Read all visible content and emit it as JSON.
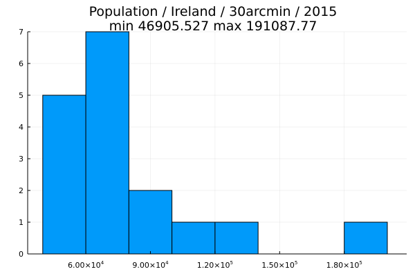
{
  "chart_data": {
    "type": "bar",
    "title": "Population / Ireland / 30arcmin / 2015",
    "subtitle": "min 46905.527  max 191087.77",
    "xlabel": "",
    "ylabel": "",
    "bins": [
      {
        "x0": 40000,
        "x1": 60000,
        "count": 5
      },
      {
        "x0": 60000,
        "x1": 80000,
        "count": 7
      },
      {
        "x0": 80000,
        "x1": 100000,
        "count": 2
      },
      {
        "x0": 100000,
        "x1": 120000,
        "count": 1
      },
      {
        "x0": 120000,
        "x1": 140000,
        "count": 1
      },
      {
        "x0": 140000,
        "x1": 160000,
        "count": 0
      },
      {
        "x0": 160000,
        "x1": 180000,
        "count": 0
      },
      {
        "x0": 180000,
        "x1": 200000,
        "count": 1
      }
    ],
    "xlim": [
      33000,
      209000
    ],
    "ylim": [
      0,
      7
    ],
    "x_ticks": [
      {
        "value": 60000,
        "mantissa": "6.00×10",
        "exponent": "4"
      },
      {
        "value": 90000,
        "mantissa": "9.00×10",
        "exponent": "4"
      },
      {
        "value": 120000,
        "mantissa": "1.20×10",
        "exponent": "5"
      },
      {
        "value": 150000,
        "mantissa": "1.50×10",
        "exponent": "5"
      },
      {
        "value": 180000,
        "mantissa": "1.80×10",
        "exponent": "5"
      }
    ],
    "y_ticks": [
      0,
      1,
      2,
      3,
      4,
      5,
      6,
      7
    ],
    "grid": true,
    "legend": false,
    "colors": {
      "bar_fill": "#009AFA",
      "bar_stroke": "#000000"
    }
  }
}
